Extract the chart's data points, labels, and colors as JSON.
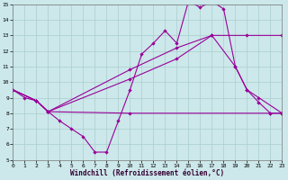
{
  "xlabel": "Windchill (Refroidissement éolien,°C)",
  "xlim": [
    0,
    23
  ],
  "ylim": [
    5,
    15
  ],
  "xticks": [
    0,
    1,
    2,
    3,
    4,
    5,
    6,
    7,
    8,
    9,
    10,
    11,
    12,
    13,
    14,
    15,
    16,
    17,
    18,
    19,
    20,
    21,
    22,
    23
  ],
  "yticks": [
    5,
    6,
    7,
    8,
    9,
    10,
    11,
    12,
    13,
    14,
    15
  ],
  "bg_color": "#cce8ea",
  "grid_color": "#aacdd0",
  "line_color": "#990099",
  "line1_x": [
    0,
    1,
    2,
    3,
    4,
    5,
    6,
    7,
    8,
    9,
    10,
    11,
    12,
    13,
    14,
    15,
    16,
    17,
    18,
    19,
    20,
    21,
    22,
    23
  ],
  "line1_y": [
    9.5,
    9.0,
    8.8,
    8.1,
    7.5,
    7.0,
    6.5,
    5.5,
    5.5,
    7.5,
    9.5,
    11.8,
    12.5,
    13.3,
    12.5,
    15.2,
    14.8,
    15.2,
    14.7,
    11.0,
    9.5,
    8.7,
    8.0,
    8.0
  ],
  "line2_x": [
    0,
    2,
    3,
    10,
    22,
    23
  ],
  "line2_y": [
    9.5,
    8.8,
    8.1,
    8.0,
    8.0,
    8.0
  ],
  "line3_x": [
    0,
    2,
    3,
    10,
    14,
    17,
    19,
    20,
    21,
    23
  ],
  "line3_y": [
    9.5,
    8.8,
    8.1,
    10.2,
    11.5,
    13.0,
    11.0,
    9.5,
    9.0,
    8.0
  ],
  "line4_x": [
    0,
    2,
    3,
    10,
    14,
    17,
    20,
    23
  ],
  "line4_y": [
    9.5,
    8.8,
    8.1,
    10.8,
    12.2,
    13.0,
    13.0,
    13.0
  ]
}
